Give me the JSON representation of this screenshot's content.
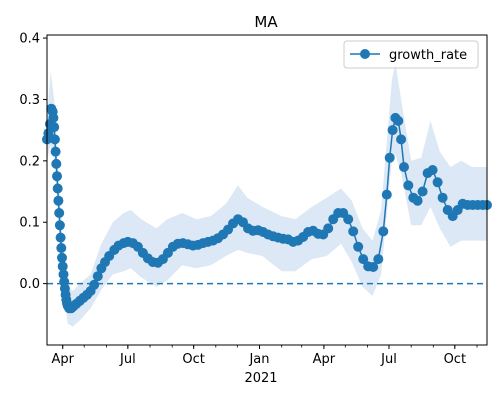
{
  "chart_data": {
    "type": "line",
    "title": "MA",
    "xlabel": "",
    "ylabel": "",
    "x_ticks": [
      "Apr",
      "Jul",
      "Oct",
      "Jan",
      "Apr",
      "Jul",
      "Oct"
    ],
    "x_tick_dates": [
      "2020-04-01",
      "2020-07-01",
      "2020-10-01",
      "2021-01-01",
      "2021-04-01",
      "2021-07-01",
      "2021-10-01"
    ],
    "x_year_label": "2021",
    "y_ticks": [
      "0.0",
      "0.1",
      "0.2",
      "0.3",
      "0.4"
    ],
    "xlim": [
      "2020-03-10",
      "2021-11-15"
    ],
    "ylim": [
      -0.1,
      0.405
    ],
    "reference_line": {
      "y": 0.0,
      "style": "dashed"
    },
    "legend": {
      "position": "top-right",
      "entries": [
        "growth_rate"
      ]
    },
    "colors": {
      "series": "#1f77b4",
      "band": "#dce8f5",
      "reference": "#1f77b4"
    },
    "series": [
      {
        "name": "growth_rate",
        "marker": "circle",
        "points": [
          [
            "2020-03-10",
            0.235
          ],
          [
            "2020-03-12",
            0.245
          ],
          [
            "2020-03-14",
            0.26
          ],
          [
            "2020-03-16",
            0.285
          ],
          [
            "2020-03-18",
            0.28
          ],
          [
            "2020-03-19",
            0.27
          ],
          [
            "2020-03-20",
            0.255
          ],
          [
            "2020-03-21",
            0.235
          ],
          [
            "2020-03-22",
            0.215
          ],
          [
            "2020-03-23",
            0.195
          ],
          [
            "2020-03-24",
            0.175
          ],
          [
            "2020-03-25",
            0.155
          ],
          [
            "2020-03-26",
            0.135
          ],
          [
            "2020-03-27",
            0.115
          ],
          [
            "2020-03-28",
            0.095
          ],
          [
            "2020-03-29",
            0.075
          ],
          [
            "2020-03-30",
            0.058
          ],
          [
            "2020-03-31",
            0.042
          ],
          [
            "2020-04-01",
            0.028
          ],
          [
            "2020-04-02",
            0.015
          ],
          [
            "2020-04-03",
            0.003
          ],
          [
            "2020-04-04",
            -0.008
          ],
          [
            "2020-04-05",
            -0.018
          ],
          [
            "2020-04-06",
            -0.026
          ],
          [
            "2020-04-07",
            -0.032
          ],
          [
            "2020-04-08",
            -0.036
          ],
          [
            "2020-04-10",
            -0.04
          ],
          [
            "2020-04-13",
            -0.04
          ],
          [
            "2020-04-16",
            -0.037
          ],
          [
            "2020-04-20",
            -0.033
          ],
          [
            "2020-04-25",
            -0.028
          ],
          [
            "2020-04-30",
            -0.023
          ],
          [
            "2020-05-05",
            -0.018
          ],
          [
            "2020-05-10",
            -0.012
          ],
          [
            "2020-05-15",
            -0.002
          ],
          [
            "2020-05-20",
            0.012
          ],
          [
            "2020-05-25",
            0.025
          ],
          [
            "2020-05-30",
            0.035
          ],
          [
            "2020-06-05",
            0.045
          ],
          [
            "2020-06-12",
            0.055
          ],
          [
            "2020-06-18",
            0.062
          ],
          [
            "2020-06-25",
            0.066
          ],
          [
            "2020-07-01",
            0.068
          ],
          [
            "2020-07-08",
            0.066
          ],
          [
            "2020-07-15",
            0.06
          ],
          [
            "2020-07-22",
            0.05
          ],
          [
            "2020-07-29",
            0.041
          ],
          [
            "2020-08-05",
            0.035
          ],
          [
            "2020-08-12",
            0.034
          ],
          [
            "2020-08-19",
            0.04
          ],
          [
            "2020-08-26",
            0.05
          ],
          [
            "2020-09-02",
            0.06
          ],
          [
            "2020-09-09",
            0.065
          ],
          [
            "2020-09-16",
            0.066
          ],
          [
            "2020-09-23",
            0.064
          ],
          [
            "2020-09-30",
            0.062
          ],
          [
            "2020-10-07",
            0.063
          ],
          [
            "2020-10-14",
            0.066
          ],
          [
            "2020-10-21",
            0.068
          ],
          [
            "2020-10-28",
            0.07
          ],
          [
            "2020-11-04",
            0.074
          ],
          [
            "2020-11-11",
            0.08
          ],
          [
            "2020-11-18",
            0.088
          ],
          [
            "2020-11-25",
            0.098
          ],
          [
            "2020-12-02",
            0.105
          ],
          [
            "2020-12-09",
            0.1
          ],
          [
            "2020-12-16",
            0.09
          ],
          [
            "2020-12-23",
            0.086
          ],
          [
            "2020-12-30",
            0.087
          ],
          [
            "2021-01-06",
            0.084
          ],
          [
            "2021-01-13",
            0.08
          ],
          [
            "2021-01-20",
            0.077
          ],
          [
            "2021-01-27",
            0.075
          ],
          [
            "2021-02-03",
            0.073
          ],
          [
            "2021-02-10",
            0.072
          ],
          [
            "2021-02-17",
            0.068
          ],
          [
            "2021-02-24",
            0.07
          ],
          [
            "2021-03-03",
            0.076
          ],
          [
            "2021-03-10",
            0.084
          ],
          [
            "2021-03-17",
            0.086
          ],
          [
            "2021-03-24",
            0.081
          ],
          [
            "2021-03-31",
            0.08
          ],
          [
            "2021-04-07",
            0.09
          ],
          [
            "2021-04-14",
            0.105
          ],
          [
            "2021-04-21",
            0.115
          ],
          [
            "2021-04-28",
            0.115
          ],
          [
            "2021-05-05",
            0.105
          ],
          [
            "2021-05-12",
            0.085
          ],
          [
            "2021-05-19",
            0.06
          ],
          [
            "2021-05-26",
            0.04
          ],
          [
            "2021-06-02",
            0.028
          ],
          [
            "2021-06-09",
            0.027
          ],
          [
            "2021-06-16",
            0.04
          ],
          [
            "2021-06-23",
            0.085
          ],
          [
            "2021-06-28",
            0.145
          ],
          [
            "2021-07-02",
            0.205
          ],
          [
            "2021-07-06",
            0.25
          ],
          [
            "2021-07-10",
            0.27
          ],
          [
            "2021-07-14",
            0.265
          ],
          [
            "2021-07-18",
            0.235
          ],
          [
            "2021-07-22",
            0.19
          ],
          [
            "2021-07-28",
            0.16
          ],
          [
            "2021-08-04",
            0.14
          ],
          [
            "2021-08-10",
            0.135
          ],
          [
            "2021-08-17",
            0.15
          ],
          [
            "2021-08-24",
            0.18
          ],
          [
            "2021-08-31",
            0.185
          ],
          [
            "2021-09-07",
            0.165
          ],
          [
            "2021-09-14",
            0.14
          ],
          [
            "2021-09-21",
            0.12
          ],
          [
            "2021-09-28",
            0.11
          ],
          [
            "2021-10-05",
            0.12
          ],
          [
            "2021-10-12",
            0.13
          ],
          [
            "2021-10-19",
            0.128
          ],
          [
            "2021-10-26",
            0.128
          ],
          [
            "2021-11-02",
            0.128
          ],
          [
            "2021-11-09",
            0.128
          ],
          [
            "2021-11-15",
            0.128
          ]
        ]
      }
    ],
    "uncertainty_band": {
      "upper": [
        [
          "2020-03-10",
          0.27
        ],
        [
          "2020-03-15",
          0.345
        ],
        [
          "2020-03-20",
          0.3
        ],
        [
          "2020-03-25",
          0.2
        ],
        [
          "2020-04-01",
          0.07
        ],
        [
          "2020-04-08",
          -0.005
        ],
        [
          "2020-04-15",
          -0.012
        ],
        [
          "2020-04-25",
          0.0
        ],
        [
          "2020-05-10",
          0.015
        ],
        [
          "2020-05-25",
          0.065
        ],
        [
          "2020-06-10",
          0.1
        ],
        [
          "2020-06-25",
          0.115
        ],
        [
          "2020-07-05",
          0.12
        ],
        [
          "2020-07-20",
          0.105
        ],
        [
          "2020-08-10",
          0.09
        ],
        [
          "2020-08-25",
          0.105
        ],
        [
          "2020-09-15",
          0.115
        ],
        [
          "2020-10-05",
          0.105
        ],
        [
          "2020-10-25",
          0.11
        ],
        [
          "2020-11-15",
          0.13
        ],
        [
          "2020-12-02",
          0.16
        ],
        [
          "2020-12-15",
          0.14
        ],
        [
          "2021-01-05",
          0.125
        ],
        [
          "2021-02-01",
          0.11
        ],
        [
          "2021-02-20",
          0.105
        ],
        [
          "2021-03-15",
          0.125
        ],
        [
          "2021-04-05",
          0.14
        ],
        [
          "2021-04-25",
          0.155
        ],
        [
          "2021-05-10",
          0.135
        ],
        [
          "2021-05-25",
          0.09
        ],
        [
          "2021-06-08",
          0.07
        ],
        [
          "2021-06-20",
          0.12
        ],
        [
          "2021-07-05",
          0.33
        ],
        [
          "2021-07-10",
          0.36
        ],
        [
          "2021-07-18",
          0.3
        ],
        [
          "2021-08-01",
          0.2
        ],
        [
          "2021-08-15",
          0.205
        ],
        [
          "2021-08-28",
          0.265
        ],
        [
          "2021-09-10",
          0.215
        ],
        [
          "2021-09-25",
          0.19
        ],
        [
          "2021-10-10",
          0.2
        ],
        [
          "2021-10-25",
          0.19
        ],
        [
          "2021-11-15",
          0.19
        ]
      ],
      "lower": [
        [
          "2020-03-10",
          0.2
        ],
        [
          "2020-03-15",
          0.225
        ],
        [
          "2020-03-20",
          0.2
        ],
        [
          "2020-03-25",
          0.12
        ],
        [
          "2020-04-01",
          -0.005
        ],
        [
          "2020-04-08",
          -0.065
        ],
        [
          "2020-04-15",
          -0.07
        ],
        [
          "2020-04-25",
          -0.06
        ],
        [
          "2020-05-10",
          -0.04
        ],
        [
          "2020-05-25",
          -0.01
        ],
        [
          "2020-06-10",
          0.015
        ],
        [
          "2020-06-25",
          0.02
        ],
        [
          "2020-07-05",
          0.025
        ],
        [
          "2020-07-20",
          0.01
        ],
        [
          "2020-08-10",
          -0.005
        ],
        [
          "2020-08-25",
          0.005
        ],
        [
          "2020-09-15",
          0.03
        ],
        [
          "2020-10-05",
          0.025
        ],
        [
          "2020-10-25",
          0.03
        ],
        [
          "2020-11-15",
          0.045
        ],
        [
          "2020-12-02",
          0.055
        ],
        [
          "2020-12-15",
          0.05
        ],
        [
          "2021-01-05",
          0.045
        ],
        [
          "2021-02-01",
          0.02
        ],
        [
          "2021-02-20",
          0.02
        ],
        [
          "2021-03-15",
          0.04
        ],
        [
          "2021-04-05",
          0.045
        ],
        [
          "2021-04-25",
          0.065
        ],
        [
          "2021-05-10",
          0.035
        ],
        [
          "2021-05-25",
          -0.005
        ],
        [
          "2021-06-08",
          -0.02
        ],
        [
          "2021-06-20",
          0.015
        ],
        [
          "2021-07-05",
          0.2
        ],
        [
          "2021-07-10",
          0.21
        ],
        [
          "2021-07-18",
          0.18
        ],
        [
          "2021-08-01",
          0.095
        ],
        [
          "2021-08-15",
          0.095
        ],
        [
          "2021-08-28",
          0.125
        ],
        [
          "2021-09-10",
          0.09
        ],
        [
          "2021-09-25",
          0.06
        ],
        [
          "2021-10-10",
          0.07
        ],
        [
          "2021-10-25",
          0.07
        ],
        [
          "2021-11-15",
          0.07
        ]
      ]
    }
  }
}
